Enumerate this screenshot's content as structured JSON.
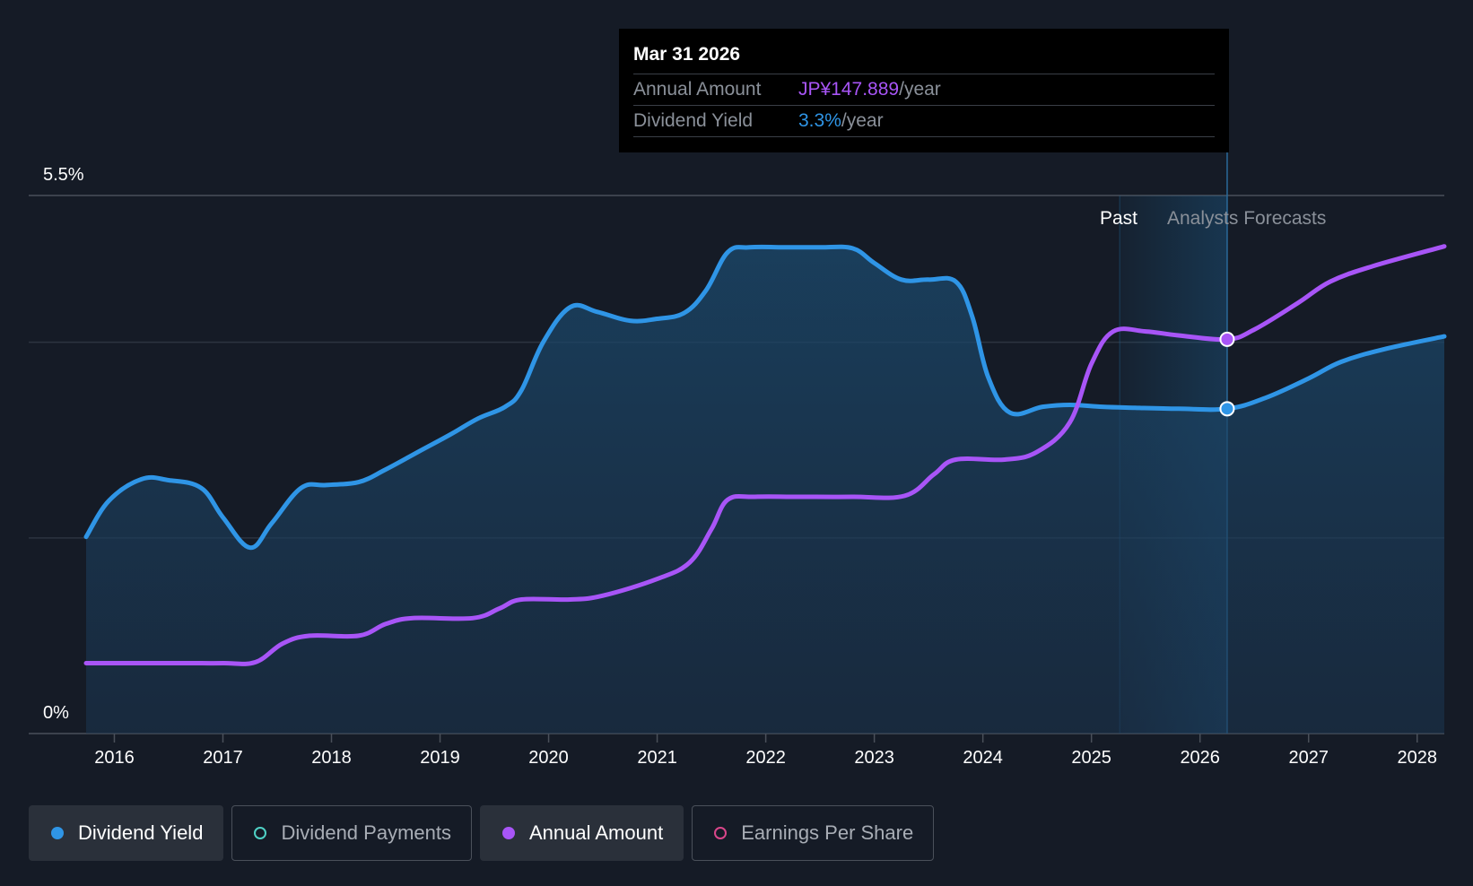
{
  "chart_data": {
    "type": "line",
    "y_axis": {
      "top_label": "5.5%",
      "bottom_label": "0%",
      "ylim": [
        0,
        5.5
      ],
      "gridlines": [
        2.0,
        4.0,
        5.5
      ]
    },
    "x_axis": {
      "tick_labels": [
        "2016",
        "2017",
        "2018",
        "2019",
        "2020",
        "2021",
        "2022",
        "2023",
        "2024",
        "2025",
        "2026",
        "2027",
        "2028"
      ],
      "xlim": [
        2015.74,
        2028.25
      ]
    },
    "region_labels": {
      "past": "Past",
      "forecast": "Analysts Forecasts"
    },
    "divider_x": 2025.26,
    "series": [
      {
        "name": "Dividend Yield",
        "unit": "%",
        "color": "#2f95e6",
        "filled": true,
        "points": [
          [
            2015.74,
            2.01
          ],
          [
            2015.95,
            2.38
          ],
          [
            2016.25,
            2.6
          ],
          [
            2016.5,
            2.59
          ],
          [
            2016.8,
            2.51
          ],
          [
            2017.0,
            2.21
          ],
          [
            2017.25,
            1.9
          ],
          [
            2017.45,
            2.15
          ],
          [
            2017.72,
            2.51
          ],
          [
            2017.95,
            2.54
          ],
          [
            2018.25,
            2.57
          ],
          [
            2018.5,
            2.7
          ],
          [
            2018.8,
            2.88
          ],
          [
            2019.1,
            3.06
          ],
          [
            2019.35,
            3.22
          ],
          [
            2019.6,
            3.34
          ],
          [
            2019.75,
            3.51
          ],
          [
            2019.95,
            4.0
          ],
          [
            2020.2,
            4.36
          ],
          [
            2020.45,
            4.31
          ],
          [
            2020.75,
            4.22
          ],
          [
            2021.0,
            4.24
          ],
          [
            2021.25,
            4.3
          ],
          [
            2021.45,
            4.53
          ],
          [
            2021.65,
            4.92
          ],
          [
            2021.85,
            4.97
          ],
          [
            2022.2,
            4.97
          ],
          [
            2022.5,
            4.97
          ],
          [
            2022.8,
            4.96
          ],
          [
            2023.0,
            4.81
          ],
          [
            2023.25,
            4.64
          ],
          [
            2023.5,
            4.64
          ],
          [
            2023.75,
            4.62
          ],
          [
            2023.9,
            4.27
          ],
          [
            2024.05,
            3.64
          ],
          [
            2024.25,
            3.28
          ],
          [
            2024.55,
            3.34
          ],
          [
            2024.8,
            3.36
          ],
          [
            2025.1,
            3.34
          ],
          [
            2025.4,
            3.33
          ],
          [
            2025.8,
            3.32
          ],
          [
            2026.25,
            3.32
          ],
          [
            2026.6,
            3.43
          ],
          [
            2027.0,
            3.63
          ],
          [
            2027.3,
            3.8
          ],
          [
            2027.7,
            3.93
          ],
          [
            2028.25,
            4.06
          ]
        ]
      },
      {
        "name": "Annual Amount",
        "unit": "JP¥",
        "color": "#a855f7",
        "filled": false,
        "points": [
          [
            2015.74,
            0.72
          ],
          [
            2016.6,
            0.72
          ],
          [
            2017.0,
            0.72
          ],
          [
            2017.3,
            0.73
          ],
          [
            2017.55,
            0.92
          ],
          [
            2017.8,
            1.0
          ],
          [
            2018.25,
            1.0
          ],
          [
            2018.5,
            1.12
          ],
          [
            2018.75,
            1.18
          ],
          [
            2019.3,
            1.18
          ],
          [
            2019.55,
            1.28
          ],
          [
            2019.75,
            1.37
          ],
          [
            2020.2,
            1.37
          ],
          [
            2020.5,
            1.41
          ],
          [
            2021.0,
            1.58
          ],
          [
            2021.3,
            1.75
          ],
          [
            2021.5,
            2.09
          ],
          [
            2021.65,
            2.39
          ],
          [
            2021.9,
            2.42
          ],
          [
            2022.3,
            2.42
          ],
          [
            2022.8,
            2.42
          ],
          [
            2023.28,
            2.43
          ],
          [
            2023.55,
            2.65
          ],
          [
            2023.75,
            2.8
          ],
          [
            2024.2,
            2.8
          ],
          [
            2024.5,
            2.88
          ],
          [
            2024.8,
            3.18
          ],
          [
            2025.0,
            3.78
          ],
          [
            2025.2,
            4.11
          ],
          [
            2025.5,
            4.11
          ],
          [
            2025.8,
            4.07
          ],
          [
            2026.25,
            4.03
          ],
          [
            2026.5,
            4.13
          ],
          [
            2026.9,
            4.4
          ],
          [
            2027.2,
            4.62
          ],
          [
            2027.6,
            4.78
          ],
          [
            2028.25,
            4.98
          ]
        ]
      }
    ],
    "hover": {
      "x": 2026.25,
      "dividend_yield_value": 3.32,
      "annual_amount_value": 4.03
    }
  },
  "tooltip": {
    "date": "Mar 31 2026",
    "rows": [
      {
        "key": "Annual Amount",
        "value": "JP¥147.889",
        "unit": "/year"
      },
      {
        "key": "Dividend Yield",
        "value": "3.3%",
        "unit": "/year"
      }
    ]
  },
  "legend": [
    {
      "label": "Dividend Yield",
      "active": true,
      "color": "#2f95e6",
      "filled": true
    },
    {
      "label": "Dividend Payments",
      "active": false,
      "color": "#4fd1c5",
      "filled": false
    },
    {
      "label": "Annual Amount",
      "active": true,
      "color": "#a855f7",
      "filled": true
    },
    {
      "label": "Earnings Per Share",
      "active": false,
      "color": "#d9468a",
      "filled": false
    }
  ]
}
